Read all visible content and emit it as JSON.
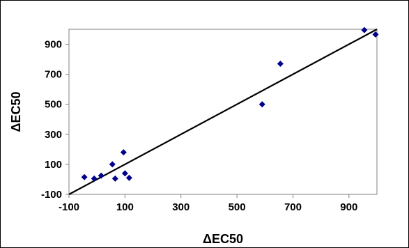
{
  "chart_data": {
    "type": "scatter",
    "xlabel": "ΔEC50",
    "ylabel": "ΔEC50",
    "xlim": [
      -100,
      1000
    ],
    "ylim": [
      -100,
      1000
    ],
    "x_ticks": [
      -100,
      100,
      300,
      500,
      700,
      900
    ],
    "y_ticks": [
      -100,
      100,
      300,
      500,
      700,
      900
    ],
    "grid": false,
    "legend": "none",
    "colors": {
      "points": "#00008B",
      "line": "#000000",
      "axis": "#808080"
    },
    "series": [
      {
        "points": [
          {
            "x": -45,
            "y": 15
          },
          {
            "x": -10,
            "y": 5
          },
          {
            "x": 15,
            "y": 25
          },
          {
            "x": 55,
            "y": 100
          },
          {
            "x": 65,
            "y": 5
          },
          {
            "x": 95,
            "y": 180
          },
          {
            "x": 100,
            "y": 40
          },
          {
            "x": 115,
            "y": 10
          },
          {
            "x": 590,
            "y": 500
          },
          {
            "x": 655,
            "y": 770
          },
          {
            "x": 955,
            "y": 995
          },
          {
            "x": 995,
            "y": 965
          }
        ]
      }
    ],
    "trendline": {
      "x1": -100,
      "y1": -100,
      "x2": 1000,
      "y2": 1000
    }
  }
}
